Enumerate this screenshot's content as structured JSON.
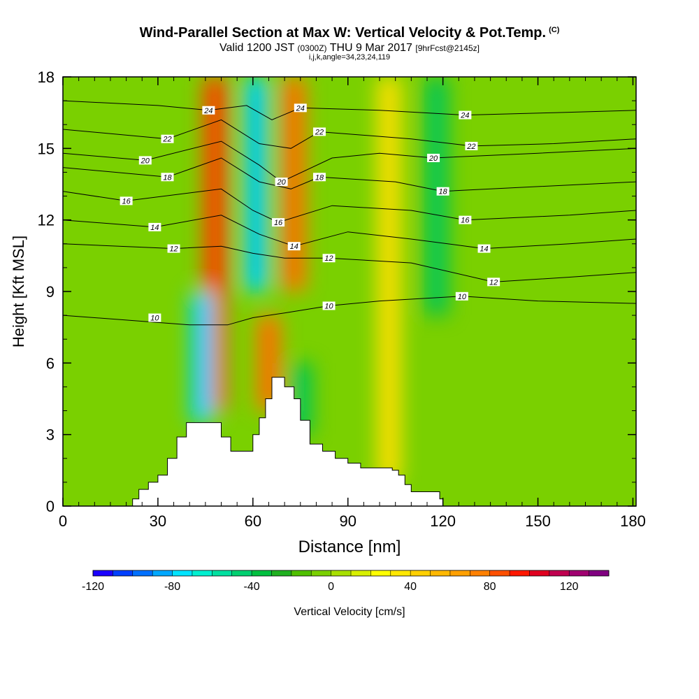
{
  "header": {
    "title": "Wind-Parallel Section at Max W: Vertical Velocity & Pot.Temp.",
    "title_mark": "(C)",
    "valid_prefix": "Valid 1200 JST",
    "valid_utc": "(0300Z)",
    "valid_date": "THU 9 Mar 2017",
    "forecast": "[9hrFcst@2145z]",
    "indices": "i,j,k,angle=34,23,24,119"
  },
  "chart_data": {
    "type": "heatmap",
    "xlabel": "Distance [nm]",
    "ylabel": "Height [Kft MSL]",
    "xlim": [
      0,
      181
    ],
    "ylim": [
      0,
      18
    ],
    "x_ticks": [
      0,
      30,
      60,
      90,
      120,
      150,
      180
    ],
    "y_ticks": [
      0,
      3,
      6,
      9,
      12,
      15,
      18
    ],
    "colorbar": {
      "label": "Vertical Velocity [cm/s]",
      "min": -120,
      "max": 140,
      "step": 10,
      "tick_values": [
        -120,
        -80,
        -40,
        0,
        40,
        80,
        120
      ],
      "tick_labels": [
        "-120",
        "-80",
        "-40",
        "0",
        "40",
        "80",
        "120"
      ],
      "colors": [
        "#1a00ff",
        "#0040ff",
        "#0070ff",
        "#00a8ff",
        "#00e4ff",
        "#00f0d0",
        "#00e0a0",
        "#00d070",
        "#00c040",
        "#20b020",
        "#50c000",
        "#7ad000",
        "#a8e000",
        "#d8f000",
        "#ffff00",
        "#ffe800",
        "#ffd000",
        "#ffb800",
        "#ffa000",
        "#ff8000",
        "#ff5000",
        "#ff1800",
        "#e00020",
        "#c00050",
        "#a00070",
        "#800080"
      ]
    },
    "velocity_features": [
      {
        "kind": "updraft",
        "x": 48,
        "y_from": 4,
        "y_to": 18,
        "peak_cm_s": 80
      },
      {
        "kind": "downdraft",
        "x": 61,
        "y_from": 9,
        "y_to": 18,
        "peak_cm_s": -80
      },
      {
        "kind": "downdraft",
        "x": 44,
        "y_from": 3.5,
        "y_to": 9,
        "peak_cm_s": -80
      },
      {
        "kind": "updraft",
        "x": 73,
        "y_from": 9,
        "y_to": 18,
        "peak_cm_s": 70
      },
      {
        "kind": "updraft",
        "x": 65,
        "y_from": 4,
        "y_to": 8,
        "peak_cm_s": 70
      },
      {
        "kind": "downdraft",
        "x": 75,
        "y_from": 3,
        "y_to": 6,
        "peak_cm_s": -40
      },
      {
        "kind": "updraft",
        "x": 103,
        "y_from": 1,
        "y_to": 18,
        "peak_cm_s": 30
      },
      {
        "kind": "downdraft",
        "x": 118,
        "y_from": 8,
        "y_to": 18,
        "peak_cm_s": -40
      }
    ],
    "terrain": [
      [
        22,
        0.3
      ],
      [
        24,
        0.7
      ],
      [
        27,
        1.0
      ],
      [
        30,
        1.3
      ],
      [
        33,
        2.0
      ],
      [
        36,
        2.9
      ],
      [
        39,
        3.5
      ],
      [
        50,
        2.9
      ],
      [
        53,
        2.3
      ],
      [
        58,
        2.3
      ],
      [
        60,
        3.0
      ],
      [
        62,
        3.7
      ],
      [
        64,
        4.5
      ],
      [
        66,
        5.4
      ],
      [
        70,
        5.0
      ],
      [
        73,
        4.5
      ],
      [
        75,
        3.6
      ],
      [
        78,
        2.6
      ],
      [
        82,
        2.3
      ],
      [
        86,
        2.0
      ],
      [
        90,
        1.8
      ],
      [
        94,
        1.6
      ],
      [
        104,
        1.5
      ],
      [
        106,
        1.3
      ],
      [
        108,
        0.9
      ],
      [
        110,
        0.6
      ],
      [
        119,
        0.3
      ]
    ],
    "isentropes": [
      {
        "label": "10",
        "label_at": [
          [
            29,
            7.9
          ],
          [
            84,
            8.4
          ],
          [
            126,
            8.8
          ]
        ],
        "points": [
          [
            0,
            8.0
          ],
          [
            20,
            7.8
          ],
          [
            40,
            7.6
          ],
          [
            52,
            7.6
          ],
          [
            60,
            7.9
          ],
          [
            70,
            8.1
          ],
          [
            84,
            8.4
          ],
          [
            100,
            8.6
          ],
          [
            126,
            8.8
          ],
          [
            150,
            8.6
          ],
          [
            181,
            8.5
          ]
        ]
      },
      {
        "label": "12",
        "label_at": [
          [
            35,
            10.8
          ],
          [
            84,
            10.4
          ],
          [
            136,
            9.4
          ]
        ],
        "points": [
          [
            0,
            11.0
          ],
          [
            35,
            10.8
          ],
          [
            50,
            10.9
          ],
          [
            60,
            10.6
          ],
          [
            70,
            10.4
          ],
          [
            84,
            10.4
          ],
          [
            110,
            10.2
          ],
          [
            136,
            9.4
          ],
          [
            160,
            9.6
          ],
          [
            181,
            9.8
          ]
        ]
      },
      {
        "label": "14",
        "label_at": [
          [
            29,
            11.7
          ],
          [
            73,
            10.9
          ],
          [
            133,
            10.8
          ]
        ],
        "points": [
          [
            0,
            12.0
          ],
          [
            29,
            11.7
          ],
          [
            50,
            12.2
          ],
          [
            62,
            11.4
          ],
          [
            73,
            10.9
          ],
          [
            90,
            11.5
          ],
          [
            110,
            11.2
          ],
          [
            133,
            10.8
          ],
          [
            160,
            11.0
          ],
          [
            181,
            11.2
          ]
        ]
      },
      {
        "label": "16",
        "label_at": [
          [
            20,
            12.8
          ],
          [
            68,
            11.9
          ],
          [
            127,
            12.0
          ]
        ],
        "points": [
          [
            0,
            13.2
          ],
          [
            20,
            12.8
          ],
          [
            50,
            13.3
          ],
          [
            60,
            12.4
          ],
          [
            68,
            11.9
          ],
          [
            85,
            12.6
          ],
          [
            110,
            12.4
          ],
          [
            127,
            12.0
          ],
          [
            160,
            12.2
          ],
          [
            181,
            12.4
          ]
        ]
      },
      {
        "label": "18",
        "label_at": [
          [
            33,
            13.8
          ],
          [
            81,
            13.8
          ],
          [
            120,
            13.2
          ]
        ],
        "points": [
          [
            0,
            14.2
          ],
          [
            33,
            13.8
          ],
          [
            50,
            14.6
          ],
          [
            62,
            13.6
          ],
          [
            72,
            13.3
          ],
          [
            81,
            13.8
          ],
          [
            105,
            13.6
          ],
          [
            120,
            13.2
          ],
          [
            150,
            13.4
          ],
          [
            181,
            13.6
          ]
        ]
      },
      {
        "label": "20",
        "label_at": [
          [
            26,
            14.5
          ],
          [
            69,
            13.6
          ],
          [
            117,
            14.6
          ]
        ],
        "points": [
          [
            0,
            14.8
          ],
          [
            26,
            14.5
          ],
          [
            50,
            15.3
          ],
          [
            62,
            14.3
          ],
          [
            69,
            13.6
          ],
          [
            85,
            14.6
          ],
          [
            100,
            14.8
          ],
          [
            117,
            14.6
          ],
          [
            150,
            14.8
          ],
          [
            181,
            15.0
          ]
        ]
      },
      {
        "label": "22",
        "label_at": [
          [
            33,
            15.4
          ],
          [
            81,
            15.7
          ],
          [
            129,
            15.1
          ]
        ],
        "points": [
          [
            0,
            15.8
          ],
          [
            33,
            15.4
          ],
          [
            50,
            16.2
          ],
          [
            62,
            15.2
          ],
          [
            72,
            15.0
          ],
          [
            81,
            15.7
          ],
          [
            110,
            15.4
          ],
          [
            129,
            15.1
          ],
          [
            155,
            15.2
          ],
          [
            181,
            15.4
          ]
        ]
      },
      {
        "label": "24",
        "label_at": [
          [
            46,
            16.6
          ],
          [
            75,
            16.7
          ],
          [
            127,
            16.4
          ]
        ],
        "points": [
          [
            0,
            17.0
          ],
          [
            30,
            16.8
          ],
          [
            46,
            16.6
          ],
          [
            58,
            16.8
          ],
          [
            66,
            16.2
          ],
          [
            75,
            16.7
          ],
          [
            100,
            16.6
          ],
          [
            127,
            16.4
          ],
          [
            155,
            16.5
          ],
          [
            181,
            16.6
          ]
        ]
      }
    ]
  }
}
